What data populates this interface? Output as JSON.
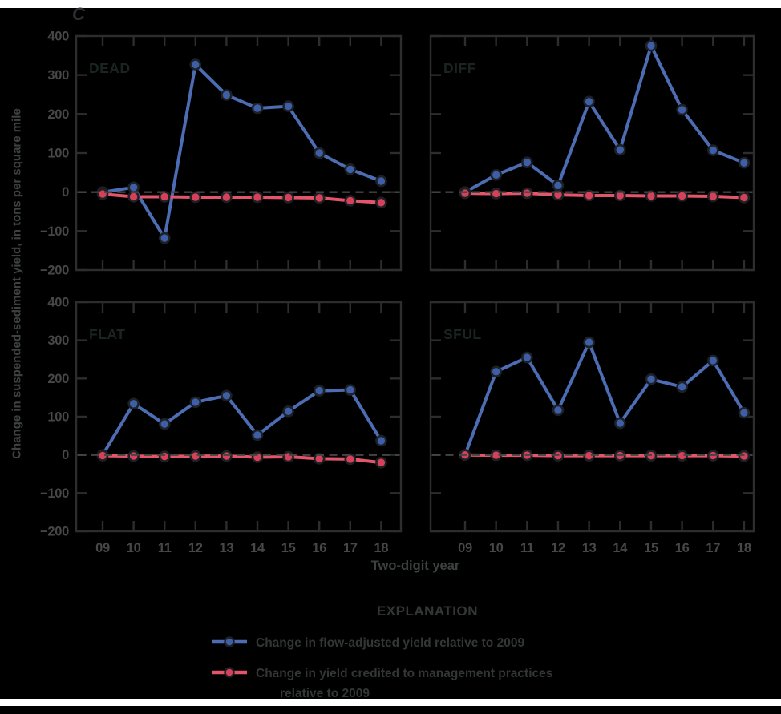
{
  "figure": {
    "panel_letter": "C"
  },
  "colors": {
    "background": "#000000",
    "paper_strip": "#ffffff",
    "blue_line": "#4c6cb4",
    "blue_marker": "#3e5ea8",
    "red_line": "#e2556a",
    "red_marker": "#d64059",
    "marker_outline": "#1d2126",
    "axis": "#2d2d2d",
    "tick_label": "#474747",
    "panel_label": "#1a2420",
    "zero_line": "#444444",
    "text": "#3d4140",
    "figure_letter": "#2b3036"
  },
  "chart_data": {
    "type": "line",
    "categories": [
      "09",
      "10",
      "11",
      "12",
      "13",
      "14",
      "15",
      "16",
      "17",
      "18"
    ],
    "xlabel": "Two-digit year",
    "ylabel": "Change in suspended-sediment yield, in tons per square mile",
    "ylim": [
      -200,
      400
    ],
    "yticks": [
      400,
      300,
      200,
      100,
      0,
      -100,
      -200
    ],
    "grid": false,
    "zero_reference_line": "dashed",
    "legend_position": "bottom",
    "panels": [
      {
        "label": "DEAD",
        "series": [
          {
            "name": "Change in flow-adjusted yield relative to 2009",
            "values": [
              0,
              12,
              -118,
              327,
              249,
              215,
              220,
              100,
              58,
              28
            ]
          },
          {
            "name": "Change in yield credited to management practices relative to 2009",
            "values": [
              -5,
              -12,
              -12,
              -13,
              -13,
              -13,
              -14,
              -15,
              -22,
              -27
            ]
          }
        ]
      },
      {
        "label": "DIFF",
        "series": [
          {
            "name": "Change in flow-adjusted yield relative to 2009",
            "values": [
              0,
              44,
              76,
              17,
              232,
              108,
              375,
              211,
              107,
              75
            ]
          },
          {
            "name": "Change in yield credited to management practices relative to 2009",
            "values": [
              -3,
              -4,
              -3,
              -7,
              -9,
              -9,
              -10,
              -10,
              -11,
              -14
            ]
          }
        ]
      },
      {
        "label": "FLAT",
        "series": [
          {
            "name": "Change in flow-adjusted yield relative to 2009",
            "values": [
              0,
              134,
              81,
              138,
              155,
              52,
              114,
              168,
              170,
              37
            ]
          },
          {
            "name": "Change in yield credited to management practices relative to 2009",
            "values": [
              -2,
              -3,
              -4,
              -3,
              -3,
              -6,
              -5,
              -10,
              -11,
              -20
            ]
          }
        ]
      },
      {
        "label": "SFUL",
        "series": [
          {
            "name": "Change in flow-adjusted yield relative to 2009",
            "values": [
              0,
              218,
              255,
              117,
              295,
              83,
              198,
              178,
              247,
              110
            ]
          },
          {
            "name": "Change in yield credited to management practices relative to 2009",
            "values": [
              0,
              -1,
              -1,
              -2,
              -2,
              -2,
              -2,
              -2,
              -2,
              -3
            ]
          }
        ]
      }
    ]
  },
  "legend": {
    "title": "EXPLANATION",
    "items": [
      {
        "label": "Change in flow-adjusted yield relative to 2009",
        "line_color": "#4c6cb4",
        "marker_color": "#3e5ea8"
      },
      {
        "label": "Change in yield credited to management practices\nrelative to 2009",
        "line_color": "#e2556a",
        "marker_color": "#d64059"
      }
    ]
  }
}
